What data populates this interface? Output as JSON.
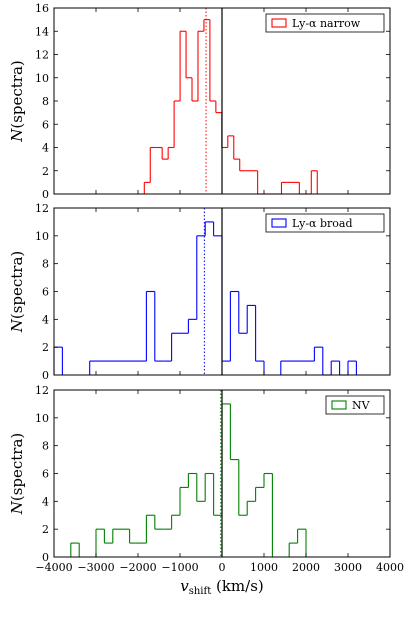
{
  "chart_data": [
    {
      "type": "bar",
      "subtype": "step-histogram",
      "color": "#ff0000",
      "legend": "Ly-α narrow",
      "legend_position": "top-right",
      "ylabel": "N(spectra)",
      "xlim": [
        -4000,
        4000
      ],
      "ylim": [
        0,
        16
      ],
      "yticks": [
        "0",
        "2",
        "4",
        "6",
        "8",
        "10",
        "12",
        "14",
        "16"
      ],
      "xticks": [],
      "bin_width": 142,
      "bins": [
        {
          "x": -1850,
          "y": 1
        },
        {
          "x": -1708,
          "y": 4
        },
        {
          "x": -1566,
          "y": 4
        },
        {
          "x": -1424,
          "y": 3
        },
        {
          "x": -1282,
          "y": 4
        },
        {
          "x": -1140,
          "y": 8
        },
        {
          "x": -998,
          "y": 14
        },
        {
          "x": -856,
          "y": 10
        },
        {
          "x": -714,
          "y": 8
        },
        {
          "x": -572,
          "y": 14
        },
        {
          "x": -430,
          "y": 15
        },
        {
          "x": -288,
          "y": 8
        },
        {
          "x": -146,
          "y": 7
        },
        {
          "x": -4,
          "y": 4
        },
        {
          "x": 138,
          "y": 5
        },
        {
          "x": 280,
          "y": 3
        },
        {
          "x": 422,
          "y": 2
        },
        {
          "x": 564,
          "y": 2
        },
        {
          "x": 706,
          "y": 2
        },
        {
          "x": 848,
          "y": 0
        },
        {
          "x": 990,
          "y": 0
        },
        {
          "x": 1132,
          "y": 0
        },
        {
          "x": 1274,
          "y": 0
        },
        {
          "x": 1416,
          "y": 1
        },
        {
          "x": 1558,
          "y": 1
        },
        {
          "x": 1700,
          "y": 1
        },
        {
          "x": 1842,
          "y": 0
        },
        {
          "x": 1984,
          "y": 0
        },
        {
          "x": 2126,
          "y": 2
        }
      ],
      "median_line": -380,
      "zero_line": 0
    },
    {
      "type": "bar",
      "subtype": "step-histogram",
      "color": "#0000ff",
      "legend": "Ly-α broad",
      "legend_position": "top-right",
      "ylabel": "N(spectra)",
      "xlim": [
        -4000,
        4000
      ],
      "ylim": [
        0,
        12
      ],
      "yticks": [
        "0",
        "2",
        "4",
        "6",
        "8",
        "10",
        "12"
      ],
      "xticks": [],
      "bins": [
        {
          "x0": -4000,
          "x1": -3800,
          "y": 2
        },
        {
          "x0": -3800,
          "x1": -3150,
          "y": 0
        },
        {
          "x0": -3150,
          "x1": -1800,
          "y": 1
        },
        {
          "x0": -1800,
          "x1": -1600,
          "y": 6
        },
        {
          "x0": -1600,
          "x1": -1400,
          "y": 1
        },
        {
          "x0": -1400,
          "x1": -1200,
          "y": 1
        },
        {
          "x0": -1200,
          "x1": -1000,
          "y": 3
        },
        {
          "x0": -1000,
          "x1": -800,
          "y": 3
        },
        {
          "x0": -800,
          "x1": -600,
          "y": 4
        },
        {
          "x0": -600,
          "x1": -400,
          "y": 10
        },
        {
          "x0": -400,
          "x1": -200,
          "y": 11
        },
        {
          "x0": -200,
          "x1": 0,
          "y": 10
        },
        {
          "x0": 0,
          "x1": 200,
          "y": 1
        },
        {
          "x0": 200,
          "x1": 400,
          "y": 6
        },
        {
          "x0": 400,
          "x1": 600,
          "y": 3
        },
        {
          "x0": 600,
          "x1": 800,
          "y": 5
        },
        {
          "x0": 800,
          "x1": 1000,
          "y": 1
        },
        {
          "x0": 1000,
          "x1": 1400,
          "y": 0
        },
        {
          "x0": 1400,
          "x1": 2200,
          "y": 1
        },
        {
          "x0": 2200,
          "x1": 2400,
          "y": 2
        },
        {
          "x0": 2400,
          "x1": 2600,
          "y": 0
        },
        {
          "x0": 2600,
          "x1": 2800,
          "y": 1
        },
        {
          "x0": 2800,
          "x1": 3000,
          "y": 0
        },
        {
          "x0": 3000,
          "x1": 3200,
          "y": 1
        }
      ],
      "median_line": -420,
      "zero_line": 0
    },
    {
      "type": "bar",
      "subtype": "step-histogram",
      "color": "#008000",
      "legend": "NV",
      "legend_position": "top-right",
      "ylabel": "N(spectra)",
      "xlabel": "v_shift (km/s)",
      "xlim": [
        -4000,
        4000
      ],
      "ylim": [
        0,
        12
      ],
      "yticks": [
        "0",
        "2",
        "4",
        "6",
        "8",
        "10",
        "12"
      ],
      "xticks": [
        "−4000",
        "−3000",
        "−2000",
        "−1000",
        "0",
        "1000",
        "2000",
        "3000",
        "4000"
      ],
      "bins": [
        {
          "x0": -3600,
          "x1": -3400,
          "y": 1
        },
        {
          "x0": -3400,
          "x1": -3000,
          "y": 0
        },
        {
          "x0": -3000,
          "x1": -2800,
          "y": 2
        },
        {
          "x0": -2800,
          "x1": -2600,
          "y": 1
        },
        {
          "x0": -2600,
          "x1": -2200,
          "y": 2
        },
        {
          "x0": -2200,
          "x1": -2000,
          "y": 1
        },
        {
          "x0": -2000,
          "x1": -1800,
          "y": 1
        },
        {
          "x0": -1800,
          "x1": -1600,
          "y": 3
        },
        {
          "x0": -1600,
          "x1": -1400,
          "y": 2
        },
        {
          "x0": -1400,
          "x1": -1200,
          "y": 2
        },
        {
          "x0": -1200,
          "x1": -1000,
          "y": 3
        },
        {
          "x0": -1000,
          "x1": -800,
          "y": 5
        },
        {
          "x0": -800,
          "x1": -600,
          "y": 6
        },
        {
          "x0": -600,
          "x1": -400,
          "y": 4
        },
        {
          "x0": -400,
          "x1": -200,
          "y": 6
        },
        {
          "x0": -200,
          "x1": 0,
          "y": 3
        },
        {
          "x0": 0,
          "x1": 200,
          "y": 11
        },
        {
          "x0": 200,
          "x1": 400,
          "y": 7
        },
        {
          "x0": 400,
          "x1": 600,
          "y": 3
        },
        {
          "x0": 600,
          "x1": 800,
          "y": 4
        },
        {
          "x0": 800,
          "x1": 1000,
          "y": 5
        },
        {
          "x0": 1000,
          "x1": 1200,
          "y": 6
        },
        {
          "x0": 1200,
          "x1": 1600,
          "y": 0
        },
        {
          "x0": 1600,
          "x1": 1800,
          "y": 1
        },
        {
          "x0": 1800,
          "x1": 2000,
          "y": 2
        }
      ],
      "median_line": -30,
      "zero_line": 0
    }
  ]
}
